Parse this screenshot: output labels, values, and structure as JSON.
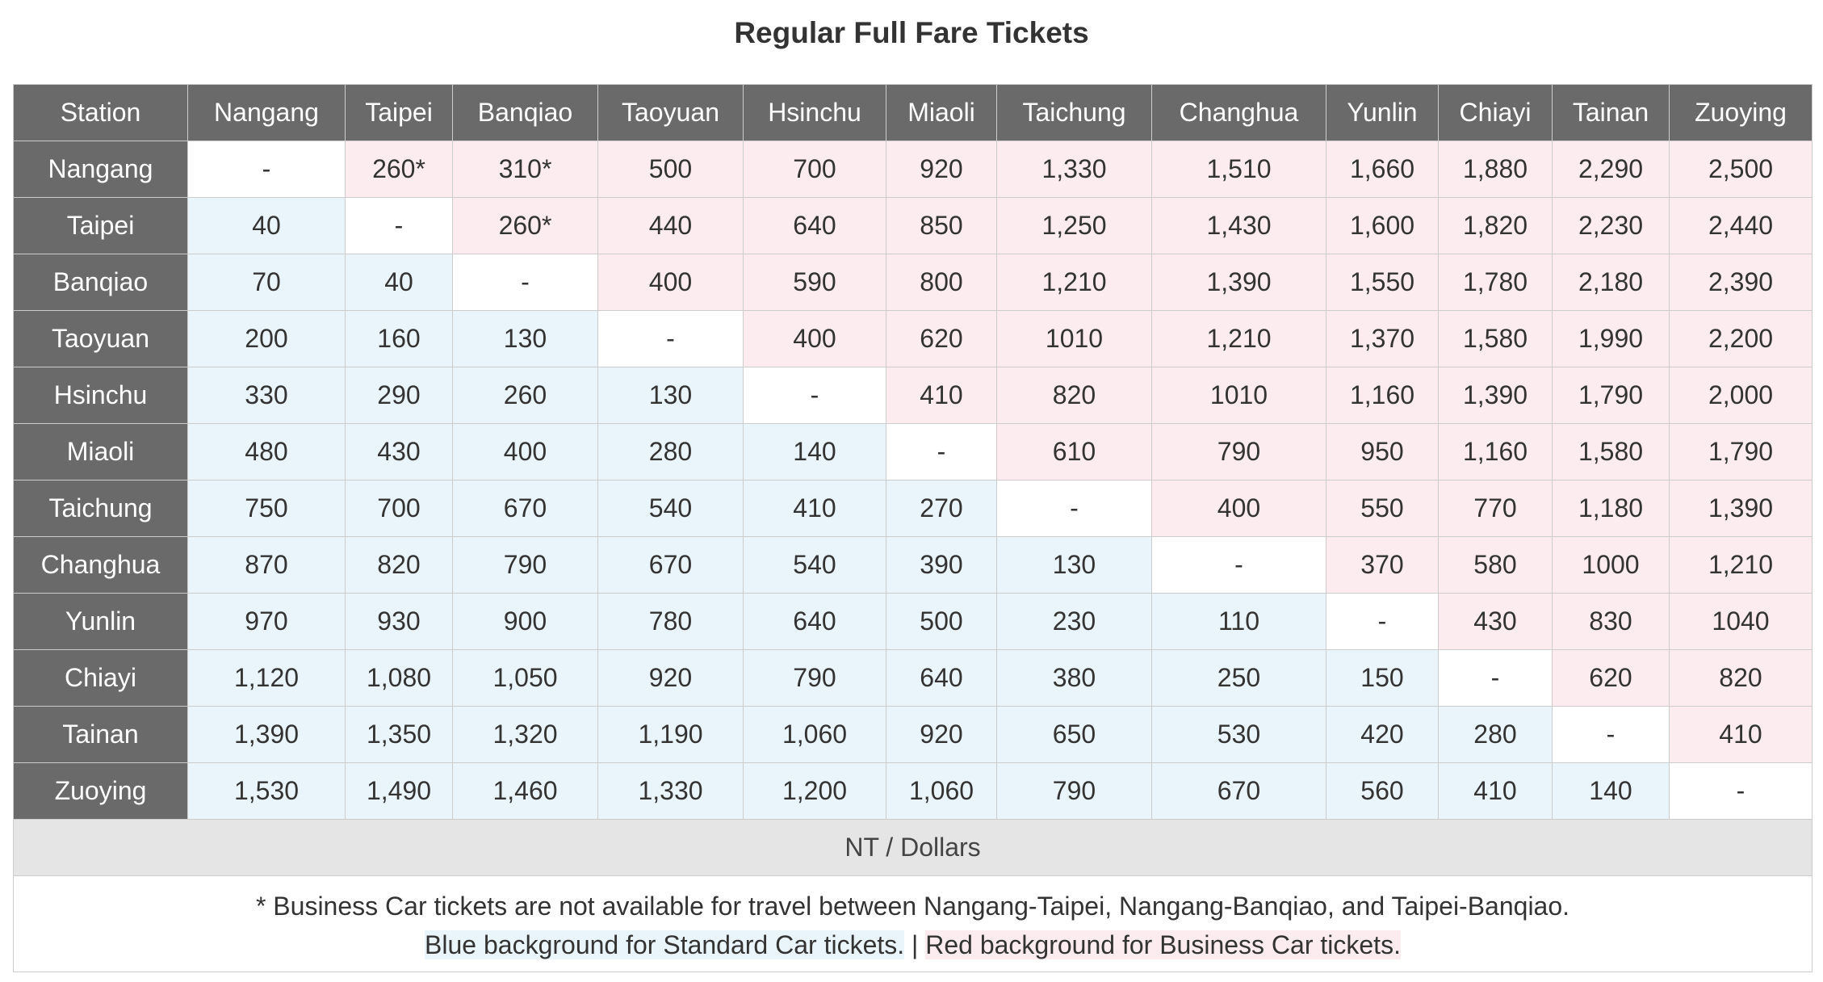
{
  "title": "Regular Full Fare Tickets",
  "corner_label": "Station",
  "stations": [
    "Nangang",
    "Taipei",
    "Banqiao",
    "Taoyuan",
    "Hsinchu",
    "Miaoli",
    "Taichung",
    "Changhua",
    "Yunlin",
    "Chiayi",
    "Tainan",
    "Zuoying"
  ],
  "fares": [
    [
      "-",
      "260*",
      "310*",
      "500",
      "700",
      "920",
      "1,330",
      "1,510",
      "1,660",
      "1,880",
      "2,290",
      "2,500"
    ],
    [
      "40",
      "-",
      "260*",
      "440",
      "640",
      "850",
      "1,250",
      "1,430",
      "1,600",
      "1,820",
      "2,230",
      "2,440"
    ],
    [
      "70",
      "40",
      "-",
      "400",
      "590",
      "800",
      "1,210",
      "1,390",
      "1,550",
      "1,780",
      "2,180",
      "2,390"
    ],
    [
      "200",
      "160",
      "130",
      "-",
      "400",
      "620",
      "1010",
      "1,210",
      "1,370",
      "1,580",
      "1,990",
      "2,200"
    ],
    [
      "330",
      "290",
      "260",
      "130",
      "-",
      "410",
      "820",
      "1010",
      "1,160",
      "1,390",
      "1,790",
      "2,000"
    ],
    [
      "480",
      "430",
      "400",
      "280",
      "140",
      "-",
      "610",
      "790",
      "950",
      "1,160",
      "1,580",
      "1,790"
    ],
    [
      "750",
      "700",
      "670",
      "540",
      "410",
      "270",
      "-",
      "400",
      "550",
      "770",
      "1,180",
      "1,390"
    ],
    [
      "870",
      "820",
      "790",
      "670",
      "540",
      "390",
      "130",
      "-",
      "370",
      "580",
      "1000",
      "1,210"
    ],
    [
      "970",
      "930",
      "900",
      "780",
      "640",
      "500",
      "230",
      "110",
      "-",
      "430",
      "830",
      "1040"
    ],
    [
      "1,120",
      "1,080",
      "1,050",
      "920",
      "790",
      "640",
      "380",
      "250",
      "150",
      "-",
      "620",
      "820"
    ],
    [
      "1,390",
      "1,350",
      "1,320",
      "1,190",
      "1,060",
      "920",
      "650",
      "530",
      "420",
      "280",
      "-",
      "410"
    ],
    [
      "1,530",
      "1,490",
      "1,460",
      "1,330",
      "1,200",
      "1,060",
      "790",
      "670",
      "560",
      "410",
      "140",
      "-"
    ]
  ],
  "unit_label": "NT / Dollars",
  "note_business": "* Business Car tickets are not available for travel between Nangang-Taipei, Nangang-Banqiao, and Taipei-Banqiao.",
  "legend_standard": "Blue background for Standard Car tickets.",
  "legend_separator": " | ",
  "legend_business": "Red background for Business Car tickets.",
  "colors": {
    "header_bg": "#6a6a6a",
    "standard_bg": "#e9f4fb",
    "business_bg": "#fcebef",
    "unit_bg": "#e5e5e5"
  }
}
